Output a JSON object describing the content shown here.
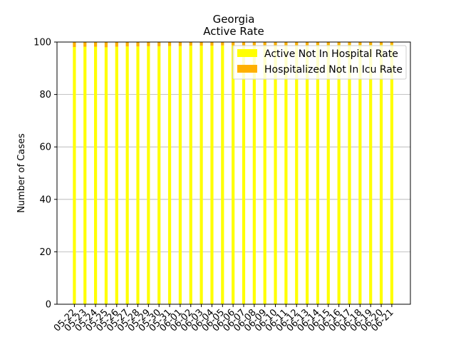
{
  "chart_data": {
    "type": "bar",
    "stacked": true,
    "title": "Georgia",
    "subtitle": "Active Rate",
    "xlabel": "",
    "ylabel": "Number of Cases",
    "ylim": [
      0,
      100
    ],
    "yticks": [
      0,
      20,
      40,
      60,
      80,
      100
    ],
    "grid": "horizontal",
    "legend_position": "top-right",
    "categories": [
      "05-22",
      "05-23",
      "05-24",
      "05-25",
      "05-26",
      "05-27",
      "05-28",
      "05-29",
      "05-30",
      "05-31",
      "06-01",
      "06-02",
      "06-03",
      "06-04",
      "06-05",
      "06-06",
      "06-07",
      "06-08",
      "06-09",
      "06-10",
      "06-11",
      "06-12",
      "06-13",
      "06-14",
      "06-15",
      "06-16",
      "06-17",
      "06-18",
      "06-19",
      "06-20",
      "06-21"
    ],
    "series": [
      {
        "name": "Active Not In Hospital Rate",
        "color": "#ffff00",
        "values": [
          98.1,
          98.2,
          98.2,
          98.0,
          98.2,
          98.3,
          98.3,
          98.4,
          98.4,
          98.5,
          98.5,
          98.6,
          98.6,
          98.6,
          98.7,
          98.7,
          98.7,
          98.7,
          98.8,
          98.8,
          98.8,
          98.8,
          98.8,
          98.9,
          98.9,
          98.9,
          98.9,
          98.9,
          98.9,
          99.0,
          99.0
        ]
      },
      {
        "name": "Hospitalized Not In Icu Rate",
        "color": "#ffb000",
        "values": [
          1.9,
          1.8,
          1.8,
          2.0,
          1.8,
          1.7,
          1.7,
          1.6,
          1.6,
          1.5,
          1.5,
          1.4,
          1.4,
          1.4,
          1.3,
          1.3,
          1.3,
          1.3,
          1.2,
          1.2,
          1.2,
          1.2,
          1.2,
          1.1,
          1.1,
          1.1,
          1.1,
          1.1,
          1.1,
          1.0,
          1.0
        ]
      }
    ]
  }
}
